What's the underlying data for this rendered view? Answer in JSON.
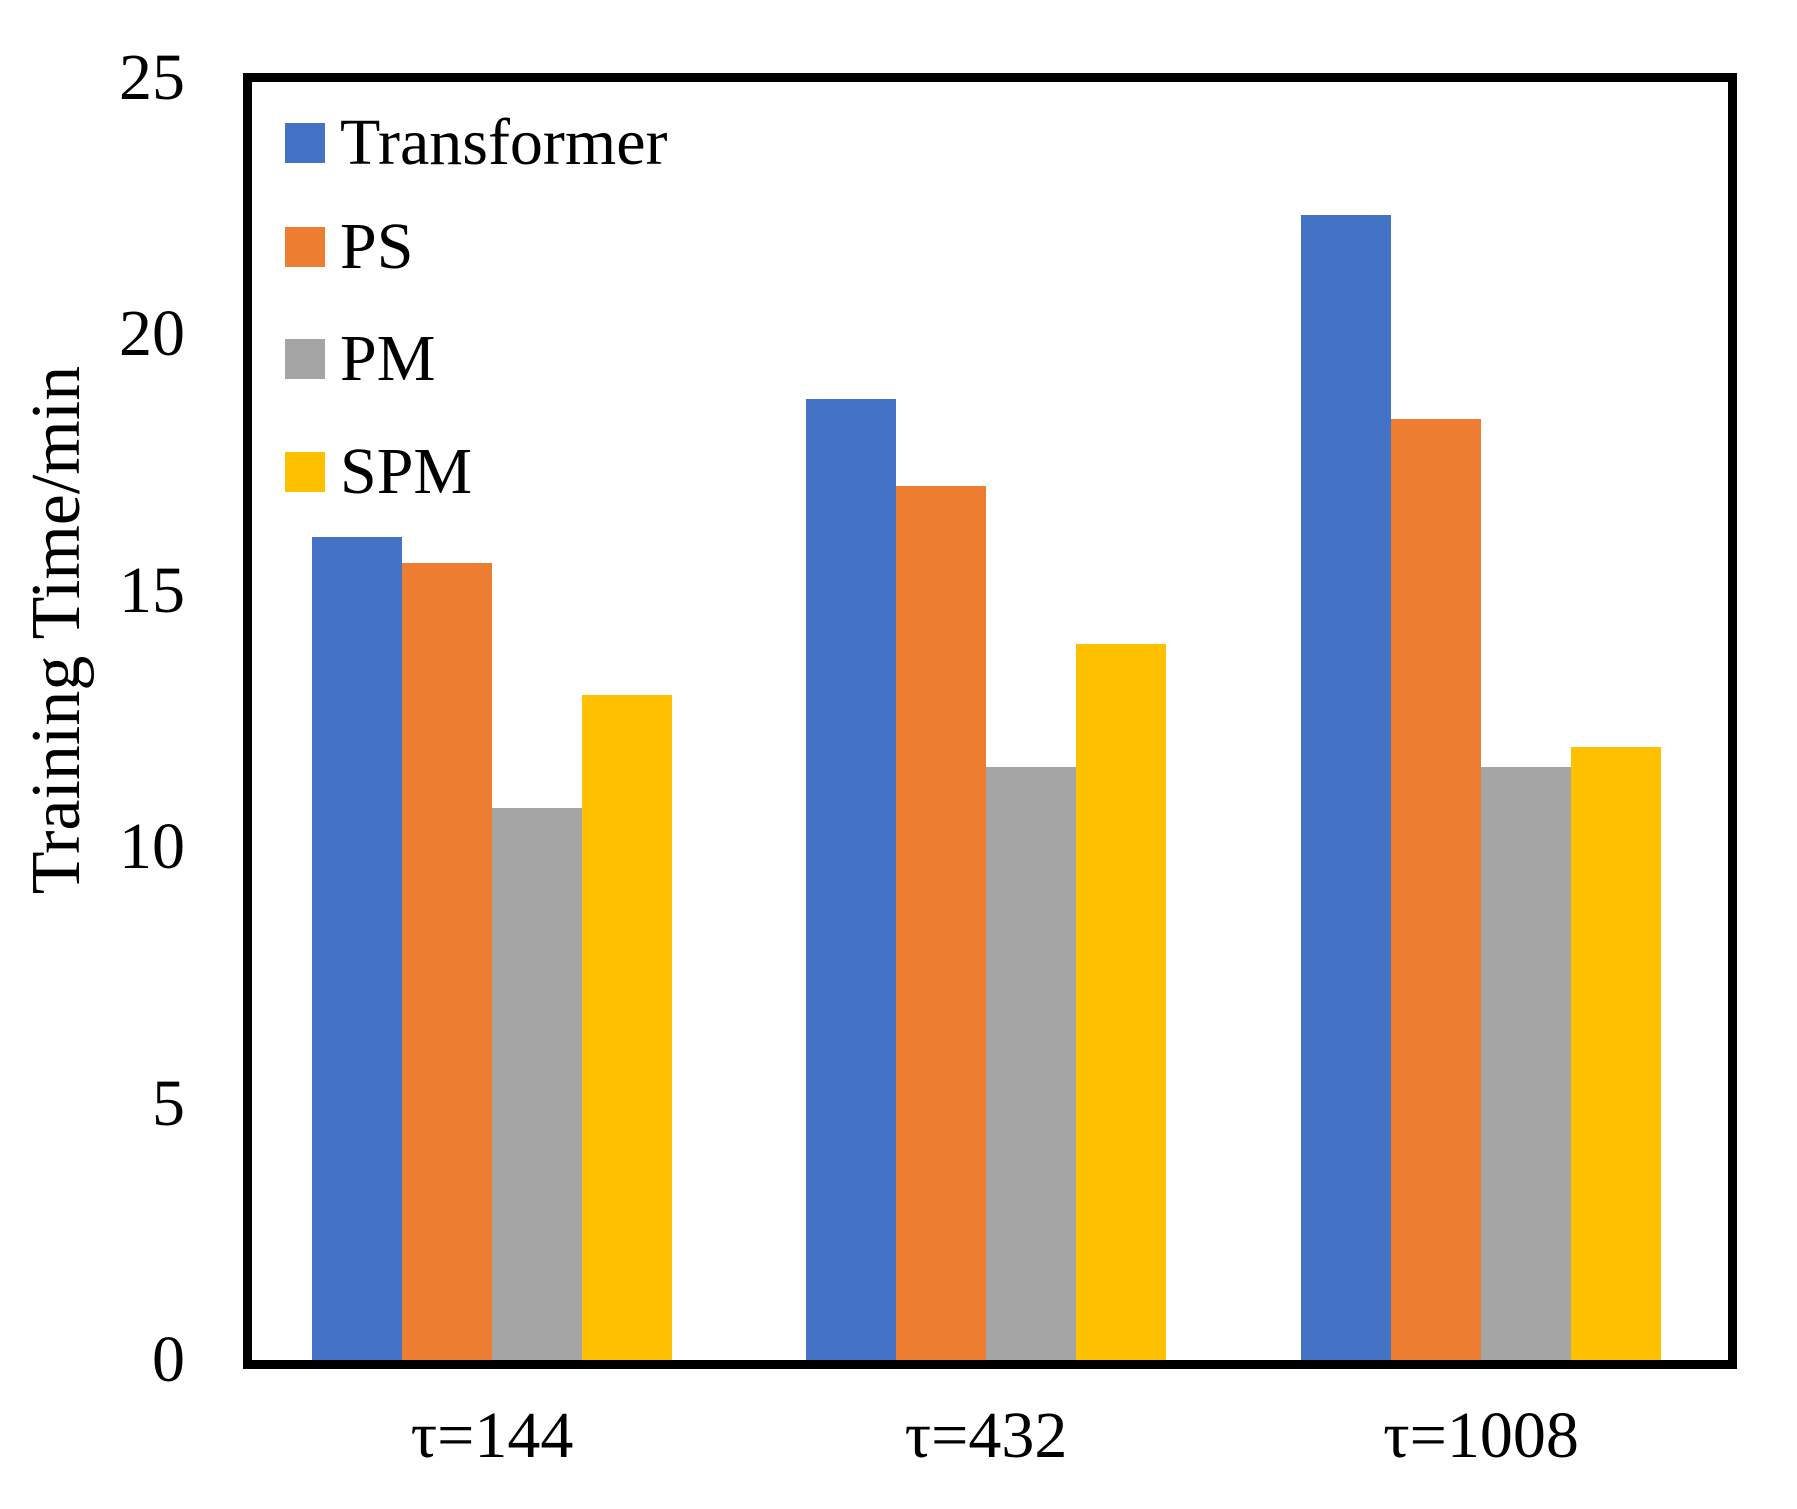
{
  "chart_data": {
    "type": "bar",
    "title": "",
    "xlabel": "",
    "ylabel": "Training Time/min",
    "ylim": [
      0,
      25
    ],
    "yticks": [
      0,
      5,
      10,
      15,
      20,
      25
    ],
    "categories": [
      "τ=144",
      "τ=432",
      "τ=1008"
    ],
    "series": [
      {
        "name": "Transformer",
        "color": "#4472C4",
        "values": [
          16.1,
          18.8,
          22.4
        ]
      },
      {
        "name": "PS",
        "color": "#ED7D31",
        "values": [
          15.6,
          17.1,
          18.4
        ]
      },
      {
        "name": "PM",
        "color": "#A5A5A5",
        "values": [
          10.8,
          11.6,
          11.6
        ]
      },
      {
        "name": "SPM",
        "color": "#FFC000",
        "values": [
          13.0,
          14.0,
          12.0
        ]
      }
    ],
    "legend_position": "top-left",
    "grid": false,
    "axis_color": "#000000",
    "background_color": "#ffffff"
  }
}
